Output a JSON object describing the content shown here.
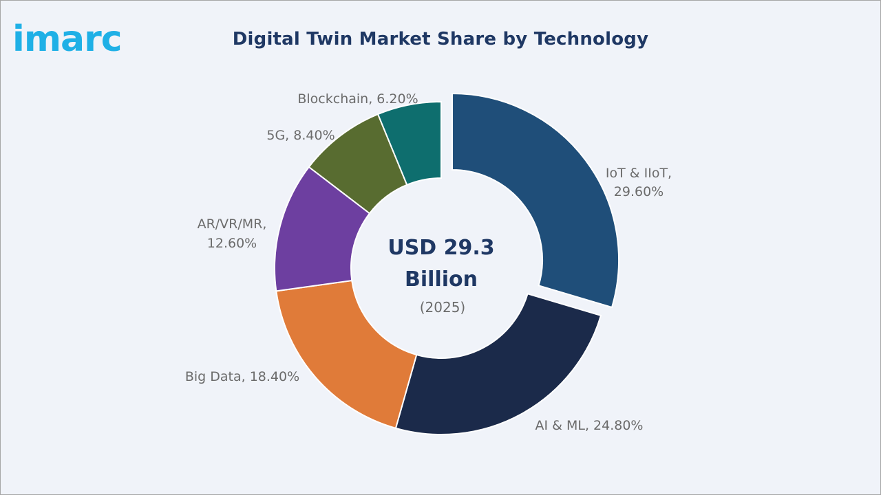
{
  "brand": {
    "logo_text": "imarc",
    "logo_color": "#1fb0e6"
  },
  "chart_data": {
    "type": "pie",
    "variant": "donut",
    "title": "Digital Twin Market Share by Technology",
    "center": {
      "line1": "USD 29.3",
      "line2": "Billion",
      "line3": "(2025)"
    },
    "unit": "%",
    "slices": [
      {
        "label": "IoT & IIoT",
        "value": 29.6,
        "display": "29.60%",
        "color": "#1f4e79",
        "exploded": true
      },
      {
        "label": "AI & ML",
        "value": 24.8,
        "display": "24.80%",
        "color": "#1b2a4a",
        "exploded": false
      },
      {
        "label": "Big Data",
        "value": 18.4,
        "display": "18.40%",
        "color": "#e07b39",
        "exploded": false
      },
      {
        "label": "AR/VR/MR",
        "value": 12.6,
        "display": "12.60%",
        "color": "#6d3fa0",
        "exploded": false
      },
      {
        "label": "5G",
        "value": 8.4,
        "display": "8.40%",
        "color": "#586c30",
        "exploded": false
      },
      {
        "label": "Blockchain",
        "value": 6.2,
        "display": "6.20%",
        "color": "#0e6e6e",
        "exploded": false
      }
    ]
  }
}
